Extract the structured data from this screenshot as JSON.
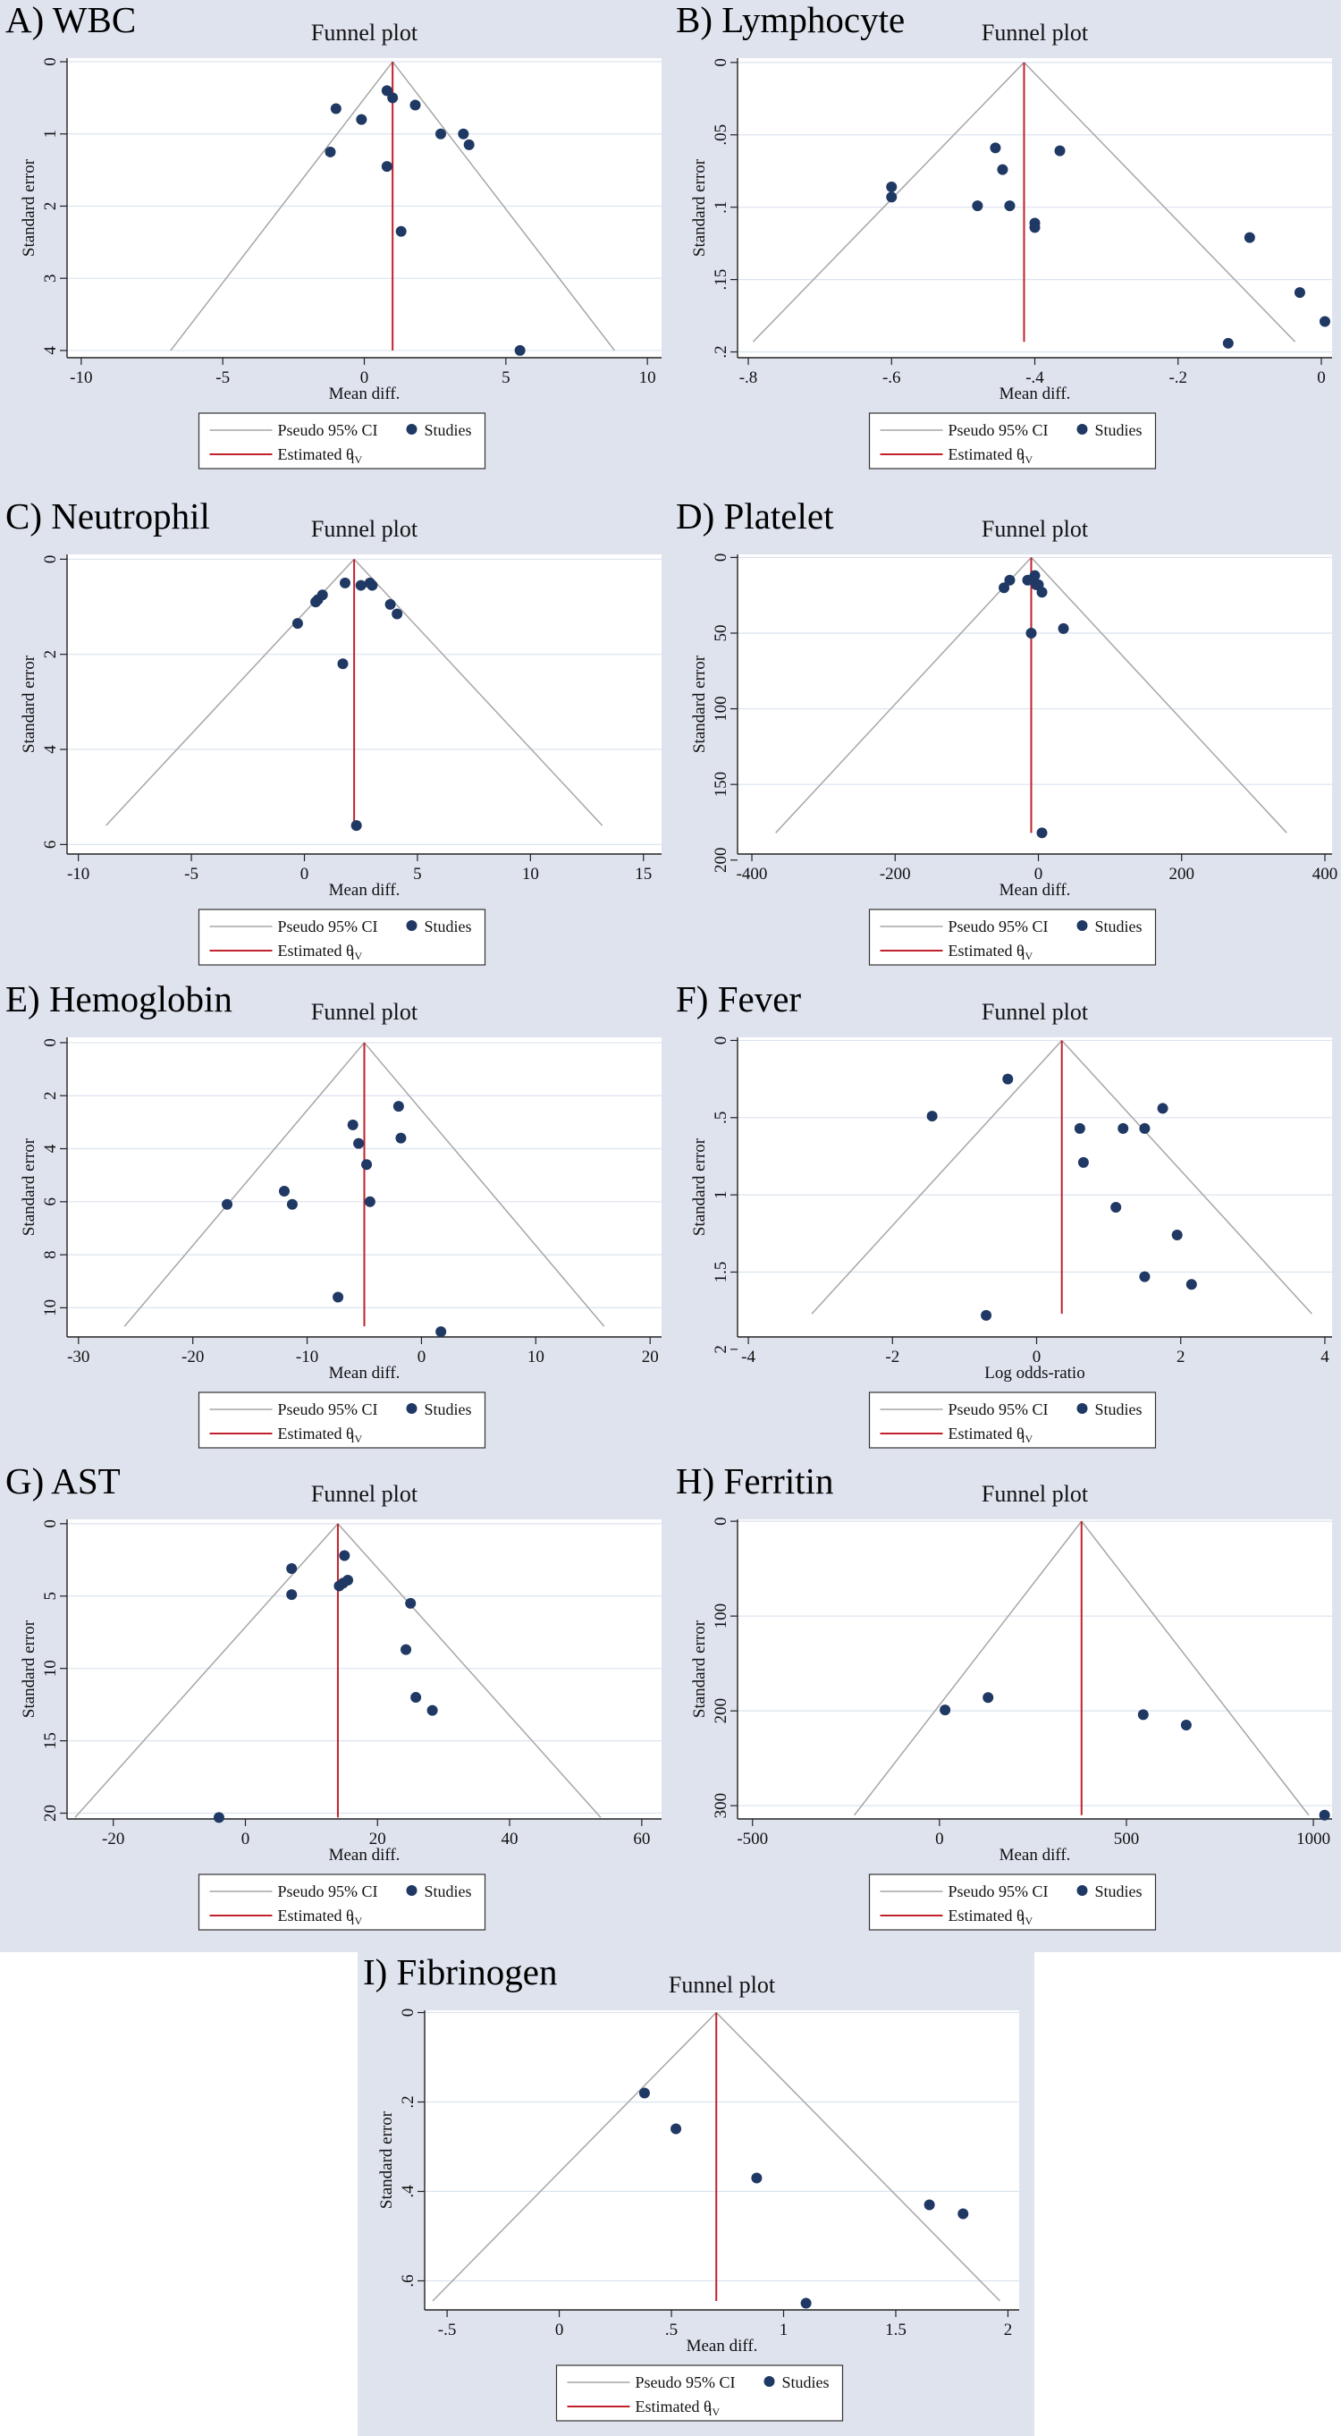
{
  "figure": {
    "background": "#dfe3ee",
    "plot_bg": "#ffffff",
    "grid_color": "#dce3ef",
    "ci_line_color": "#a6a6a6",
    "estimate_line_color": "#c0212b",
    "marker_color": "#1f3864",
    "legend": {
      "ci_label": "Pseudo 95% CI",
      "studies_label": "Studies",
      "estimate_label": "Estimated θ",
      "estimate_subscript": "IV"
    }
  },
  "chart_data": [
    {
      "panel_label": "A) WBC",
      "type": "scatter",
      "title": "Funnel plot",
      "xlabel": "Mean diff.",
      "ylabel": "Standard error",
      "xlim": [
        -10.5,
        10.5
      ],
      "ylim": [
        4.1,
        -0.05
      ],
      "xticks": [
        -10,
        -5,
        0,
        5,
        10
      ],
      "xtick_labels": [
        "-10",
        "-5",
        "0",
        "5",
        "10"
      ],
      "yticks": [
        0,
        1,
        2,
        3,
        4
      ],
      "ytick_labels": [
        "0",
        "1",
        "2",
        "3",
        "4"
      ],
      "estimate": 1,
      "se_max": 4,
      "points": [
        [
          -1,
          0.65
        ],
        [
          -0.1,
          0.8
        ],
        [
          0.8,
          0.4
        ],
        [
          1,
          0.5
        ],
        [
          1.8,
          0.6
        ],
        [
          2.7,
          1
        ],
        [
          3.5,
          1
        ],
        [
          3.7,
          1.15
        ],
        [
          -1.2,
          1.25
        ],
        [
          0.8,
          1.45
        ],
        [
          1.3,
          2.35
        ],
        [
          5.5,
          4
        ]
      ]
    },
    {
      "panel_label": "B) Lymphocyte",
      "type": "scatter",
      "title": "Funnel plot",
      "xlabel": "Mean diff.",
      "ylabel": "Standard error",
      "xlim": [
        -0.815,
        0.015
      ],
      "ylim": [
        0.204,
        -0.003
      ],
      "xticks": [
        -0.8,
        -0.6,
        -0.4,
        -0.2,
        0
      ],
      "xtick_labels": [
        "-.8",
        "-.6",
        "-.4",
        "-.2",
        "0"
      ],
      "yticks": [
        0,
        0.05,
        0.1,
        0.15,
        0.2
      ],
      "ytick_labels": [
        "0",
        ".05",
        ".1",
        ".15",
        ".2"
      ],
      "estimate": -0.415,
      "se_max": 0.193,
      "points": [
        [
          -0.455,
          0.059
        ],
        [
          -0.445,
          0.074
        ],
        [
          -0.365,
          0.061
        ],
        [
          -0.6,
          0.086
        ],
        [
          -0.6,
          0.093
        ],
        [
          -0.48,
          0.099
        ],
        [
          -0.435,
          0.099
        ],
        [
          -0.4,
          0.111
        ],
        [
          -0.4,
          0.114
        ],
        [
          -0.1,
          0.121
        ],
        [
          -0.03,
          0.159
        ],
        [
          0.005,
          0.179
        ],
        [
          -0.13,
          0.194
        ]
      ]
    },
    {
      "panel_label": "C) Neutrophil",
      "type": "scatter",
      "title": "Funnel plot",
      "xlabel": "Mean diff.",
      "ylabel": "Standard error",
      "xlim": [
        -10.5,
        15.8
      ],
      "ylim": [
        6.2,
        -0.1
      ],
      "xticks": [
        -10,
        -5,
        0,
        5,
        10,
        15
      ],
      "xtick_labels": [
        "-10",
        "-5",
        "0",
        "5",
        "10",
        "15"
      ],
      "yticks": [
        0,
        2,
        4,
        6
      ],
      "ytick_labels": [
        "0",
        "2",
        "4",
        "6"
      ],
      "estimate": 2.2,
      "se_max": 5.6,
      "points": [
        [
          1.8,
          0.5
        ],
        [
          2.5,
          0.55
        ],
        [
          2.9,
          0.5
        ],
        [
          3,
          0.55
        ],
        [
          0.8,
          0.75
        ],
        [
          0.6,
          0.85
        ],
        [
          0.5,
          0.9
        ],
        [
          3.8,
          0.95
        ],
        [
          4.1,
          1.15
        ],
        [
          -0.3,
          1.35
        ],
        [
          1.7,
          2.2
        ],
        [
          2.3,
          5.6
        ]
      ]
    },
    {
      "panel_label": "D) Platelet",
      "type": "scatter",
      "title": "Funnel plot",
      "xlabel": "Mean diff.",
      "ylabel": "Standard error",
      "xlim": [
        -420,
        410
      ],
      "ylim": [
        196,
        -2
      ],
      "xticks": [
        -400,
        -200,
        0,
        200,
        400
      ],
      "xtick_labels": [
        "-400",
        "-200",
        "0",
        "200",
        "400"
      ],
      "yticks": [
        0,
        50,
        100,
        150,
        200
      ],
      "ytick_labels": [
        "0",
        "50",
        "100",
        "150",
        "200"
      ],
      "estimate": -10,
      "se_max": 182,
      "points": [
        [
          -5,
          12
        ],
        [
          -15,
          15
        ],
        [
          0,
          18
        ],
        [
          -3,
          18
        ],
        [
          5,
          23
        ],
        [
          -40,
          15
        ],
        [
          -48,
          20
        ],
        [
          -10,
          50
        ],
        [
          35,
          47
        ],
        [
          5,
          182
        ]
      ]
    },
    {
      "panel_label": "E) Hemoglobin",
      "type": "scatter",
      "title": "Funnel plot",
      "xlabel": "Mean diff.",
      "ylabel": "Standard error",
      "xlim": [
        -31,
        21
      ],
      "ylim": [
        11.1,
        -0.2
      ],
      "xticks": [
        -30,
        -20,
        -10,
        0,
        10,
        20
      ],
      "xtick_labels": [
        "-30",
        "-20",
        "-10",
        "0",
        "10",
        "20"
      ],
      "yticks": [
        0,
        2,
        4,
        6,
        8,
        10
      ],
      "ytick_labels": [
        "0",
        "2",
        "4",
        "6",
        "8",
        "10"
      ],
      "estimate": -5,
      "se_max": 10.7,
      "points": [
        [
          -2,
          2.4
        ],
        [
          -6,
          3.1
        ],
        [
          -1.8,
          3.6
        ],
        [
          -5.5,
          3.8
        ],
        [
          -4.8,
          4.6
        ],
        [
          -12,
          5.6
        ],
        [
          -11.3,
          6.1
        ],
        [
          -4.5,
          6
        ],
        [
          -17,
          6.1
        ],
        [
          -7.3,
          9.6
        ],
        [
          1.7,
          10.9
        ]
      ]
    },
    {
      "panel_label": "F) Fever",
      "type": "scatter",
      "title": "Funnel plot",
      "xlabel": "Log odds-ratio",
      "ylabel": "Standard error",
      "xlim": [
        -4.15,
        4.1
      ],
      "ylim": [
        1.92,
        -0.02
      ],
      "xticks": [
        -4,
        -2,
        0,
        2,
        4
      ],
      "xtick_labels": [
        "-4",
        "-2",
        "0",
        "2",
        "4"
      ],
      "yticks": [
        0,
        0.5,
        1,
        1.5,
        2
      ],
      "ytick_labels": [
        "0",
        ".5",
        "1",
        "1.5",
        "2"
      ],
      "estimate": 0.35,
      "se_max": 1.77,
      "points": [
        [
          -0.4,
          0.25
        ],
        [
          1.75,
          0.44
        ],
        [
          -1.45,
          0.49
        ],
        [
          0.6,
          0.57
        ],
        [
          1.2,
          0.57
        ],
        [
          1.5,
          0.57
        ],
        [
          0.65,
          0.79
        ],
        [
          1.1,
          1.08
        ],
        [
          1.95,
          1.26
        ],
        [
          1.5,
          1.53
        ],
        [
          2.15,
          1.58
        ],
        [
          -0.7,
          1.78
        ]
      ]
    },
    {
      "panel_label": "G) AST",
      "type": "scatter",
      "title": "Funnel plot",
      "xlabel": "Mean diff.",
      "ylabel": "Standard error",
      "xlim": [
        -27,
        63
      ],
      "ylim": [
        20.4,
        -0.3
      ],
      "xticks": [
        -20,
        0,
        20,
        40,
        60
      ],
      "xtick_labels": [
        "-20",
        "0",
        "20",
        "40",
        "60"
      ],
      "yticks": [
        0,
        5,
        10,
        15,
        20
      ],
      "ytick_labels": [
        "0",
        "5",
        "10",
        "15",
        "20"
      ],
      "estimate": 14,
      "se_max": 20.3,
      "points": [
        [
          15,
          2.2
        ],
        [
          7,
          3.1
        ],
        [
          15.5,
          3.9
        ],
        [
          14.8,
          4.1
        ],
        [
          14.2,
          4.3
        ],
        [
          7,
          4.9
        ],
        [
          25,
          5.5
        ],
        [
          24.3,
          8.7
        ],
        [
          25.8,
          12
        ],
        [
          28.3,
          12.9
        ],
        [
          -4,
          20.3
        ]
      ]
    },
    {
      "panel_label": "H) Ferritin",
      "type": "scatter",
      "title": "Funnel plot",
      "xlabel": "Mean diff.",
      "ylabel": "Standard error",
      "xlim": [
        -540,
        1050
      ],
      "ylim": [
        314,
        -2
      ],
      "xticks": [
        -500,
        0,
        500,
        1000
      ],
      "xtick_labels": [
        "-500",
        "0",
        "500",
        "1000"
      ],
      "yticks": [
        0,
        100,
        200,
        300
      ],
      "ytick_labels": [
        "0",
        "100",
        "200",
        "300"
      ],
      "estimate": 380,
      "se_max": 310,
      "points": [
        [
          130,
          186
        ],
        [
          15,
          199
        ],
        [
          545,
          204
        ],
        [
          660,
          215
        ],
        [
          1030,
          310
        ]
      ]
    },
    {
      "panel_label": "I) Fibrinogen",
      "type": "scatter",
      "title": "Funnel plot",
      "xlabel": "Mean diff.",
      "ylabel": "Standard error",
      "xlim": [
        -0.6,
        2.05
      ],
      "ylim": [
        0.665,
        -0.005
      ],
      "xticks": [
        -0.5,
        0,
        0.5,
        1,
        1.5,
        2
      ],
      "xtick_labels": [
        "-.5",
        "0",
        ".5",
        "1",
        "1.5",
        "2"
      ],
      "yticks": [
        0,
        0.2,
        0.4,
        0.6
      ],
      "ytick_labels": [
        "0",
        ".2",
        ".4",
        ".6"
      ],
      "estimate": 0.7,
      "se_max": 0.645,
      "points": [
        [
          0.38,
          0.18
        ],
        [
          0.52,
          0.26
        ],
        [
          0.88,
          0.37
        ],
        [
          1.65,
          0.43
        ],
        [
          1.8,
          0.45
        ],
        [
          1.1,
          0.65
        ]
      ]
    }
  ]
}
